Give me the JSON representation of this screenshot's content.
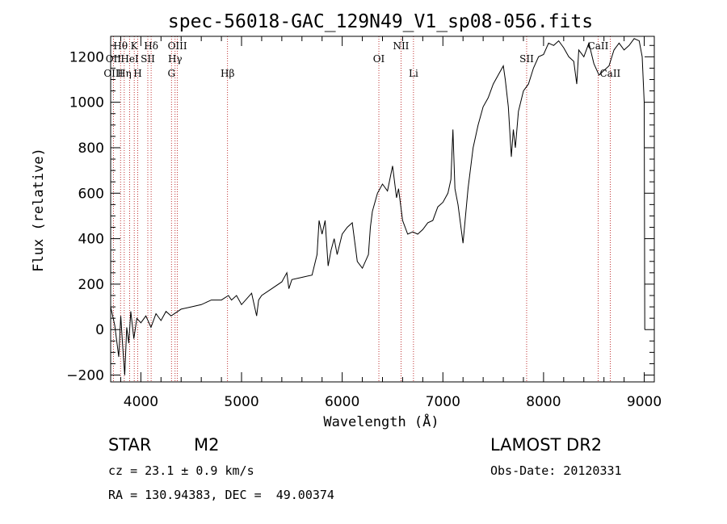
{
  "title": "spec-56018-GAC_129N49_V1_sp08-056.fits",
  "info": {
    "class": "STAR",
    "subclass": "M2",
    "survey": "LAMOST DR2",
    "cz": "cz = 23.1 ± 0.9 km/s",
    "obs_date": "Obs-Date: 20120331",
    "radec": "RA = 130.94383, DEC =  49.00374"
  },
  "chart_data": {
    "type": "line",
    "title": "spec-56018-GAC_129N49_V1_sp08-056.fits",
    "xlabel": "Wavelength (Å)",
    "ylabel": "Flux (relative)",
    "xlim": [
      3700,
      9100
    ],
    "ylim": [
      -230,
      1290
    ],
    "xticks": [
      4000,
      5000,
      6000,
      7000,
      8000,
      9000
    ],
    "yticks": [
      -200,
      0,
      200,
      400,
      600,
      800,
      1000,
      1200
    ],
    "grid": false,
    "series": [
      {
        "color": "#000000",
        "x": [
          3700,
          3740,
          3780,
          3800,
          3820,
          3840,
          3860,
          3880,
          3900,
          3930,
          3960,
          4000,
          4050,
          4100,
          4150,
          4200,
          4250,
          4300,
          4400,
          4500,
          4600,
          4700,
          4800,
          4870,
          4900,
          4950,
          5000,
          5100,
          5150,
          5170,
          5200,
          5300,
          5400,
          5450,
          5470,
          5500,
          5600,
          5700,
          5750,
          5770,
          5800,
          5830,
          5860,
          5890,
          5920,
          5950,
          6000,
          6050,
          6100,
          6150,
          6200,
          6260,
          6280,
          6300,
          6350,
          6400,
          6450,
          6500,
          6540,
          6560,
          6600,
          6650,
          6700,
          6750,
          6800,
          6850,
          6900,
          6950,
          7000,
          7050,
          7080,
          7100,
          7120,
          7150,
          7200,
          7250,
          7300,
          7350,
          7400,
          7450,
          7500,
          7550,
          7600,
          7620,
          7650,
          7680,
          7700,
          7720,
          7750,
          7800,
          7850,
          7900,
          7950,
          8000,
          8050,
          8100,
          8150,
          8200,
          8250,
          8300,
          8330,
          8350,
          8400,
          8450,
          8500,
          8550,
          8600,
          8650,
          8700,
          8750,
          8800,
          8850,
          8900,
          8950,
          8980,
          9000,
          9005
        ],
        "y": [
          100,
          20,
          -120,
          60,
          -80,
          -200,
          10,
          -60,
          80,
          -40,
          50,
          30,
          60,
          10,
          70,
          40,
          80,
          60,
          90,
          100,
          110,
          130,
          130,
          150,
          130,
          150,
          110,
          160,
          60,
          130,
          150,
          180,
          210,
          250,
          180,
          220,
          230,
          240,
          330,
          480,
          420,
          480,
          280,
          350,
          400,
          330,
          420,
          450,
          470,
          300,
          270,
          330,
          450,
          520,
          600,
          640,
          610,
          720,
          580,
          620,
          480,
          420,
          430,
          420,
          440,
          470,
          480,
          540,
          560,
          600,
          660,
          880,
          620,
          550,
          380,
          620,
          800,
          900,
          980,
          1020,
          1080,
          1120,
          1160,
          1100,
          980,
          760,
          880,
          800,
          960,
          1050,
          1080,
          1150,
          1200,
          1210,
          1260,
          1250,
          1270,
          1240,
          1200,
          1180,
          1080,
          1230,
          1200,
          1260,
          1170,
          1120,
          1140,
          1160,
          1230,
          1260,
          1230,
          1250,
          1280,
          1270,
          1200,
          1000,
          0
        ]
      }
    ],
    "annotations": [
      {
        "label": "Hθ",
        "x": 3798,
        "row": 1
      },
      {
        "label": "K",
        "x": 3934,
        "row": 1
      },
      {
        "label": "Hδ",
        "x": 4102,
        "row": 1
      },
      {
        "label": "OIII",
        "x": 4363,
        "row": 1
      },
      {
        "label": "NII",
        "x": 6584,
        "row": 1
      },
      {
        "label": "CaII",
        "x": 8542,
        "row": 1
      },
      {
        "label": "OII",
        "x": 3727,
        "row": 2
      },
      {
        "label": "HeI",
        "x": 3889,
        "row": 2
      },
      {
        "label": "SII",
        "x": 4069,
        "row": 2
      },
      {
        "label": "Hγ",
        "x": 4340,
        "row": 2
      },
      {
        "label": "OI",
        "x": 6364,
        "row": 2
      },
      {
        "label": "SII",
        "x": 7832,
        "row": 2
      },
      {
        "label": "OIII",
        "x": 3727,
        "row": 3
      },
      {
        "label": "Hη",
        "x": 3835,
        "row": 3
      },
      {
        "label": "H",
        "x": 3969,
        "row": 3
      },
      {
        "label": "G",
        "x": 4304,
        "row": 3
      },
      {
        "label": "Hβ",
        "x": 4861,
        "row": 3
      },
      {
        "label": "Li",
        "x": 6708,
        "row": 3
      },
      {
        "label": "CaII",
        "x": 8662,
        "row": 3
      }
    ],
    "line_positions": [
      3727,
      3798,
      3835,
      3889,
      3934,
      3969,
      4069,
      4102,
      4304,
      4340,
      4363,
      4861,
      6364,
      6584,
      6708,
      7832,
      8542,
      8662
    ],
    "line_color": "#b00000"
  }
}
